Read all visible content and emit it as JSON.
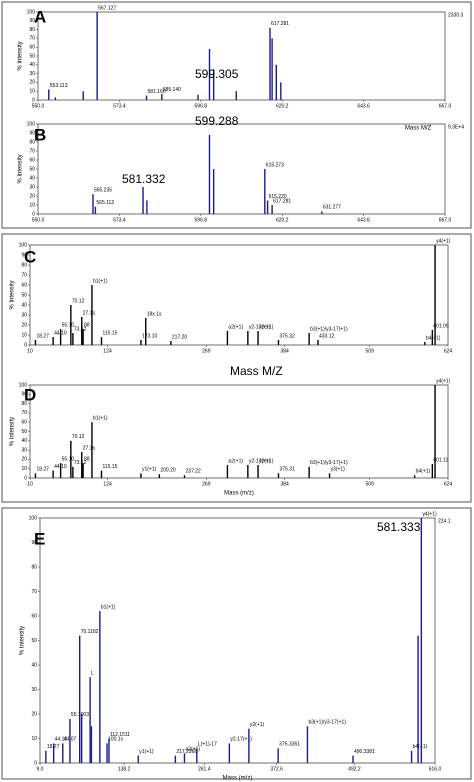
{
  "chart_data": [
    {
      "type": "bar",
      "panel": "A",
      "ylabel": "% Intensity",
      "scale_label": "2330.3",
      "x": [
        553.1,
        555.0,
        563.0,
        567.0,
        581.2,
        585.6,
        596.0,
        599.3,
        600.5,
        607.0,
        616.7,
        617.3,
        618.5,
        619.8
      ],
      "values": [
        12,
        3,
        10,
        100,
        5,
        7,
        6,
        58,
        35,
        10,
        82,
        70,
        40,
        20
      ],
      "peak_labels": [
        "553.113",
        null,
        null,
        "567.127",
        "581.160",
        "585.140",
        null,
        null,
        null,
        null,
        "617.281",
        null,
        null,
        null
      ],
      "annotations": [
        "599.305"
      ],
      "xlim": [
        550,
        667
      ],
      "ylim": [
        0,
        100
      ],
      "xticks": [
        {
          "value": 550,
          "label": "550.0"
        },
        {
          "value": 573.4,
          "label": "573.4"
        },
        {
          "value": 596.8,
          "label": "596.8"
        },
        {
          "value": 620.2,
          "label": "620.2"
        },
        {
          "value": 643.6,
          "label": "643.6"
        },
        {
          "value": 667,
          "label": "667.0"
        }
      ],
      "yticks": [
        0,
        10,
        20,
        30,
        40,
        50,
        60,
        70,
        80,
        90,
        100
      ],
      "color": "#1a1a8c"
    },
    {
      "type": "bar",
      "panel": "B",
      "ylabel": "% Intensity",
      "scale_label": "9.3E+4",
      "x": [
        565.8,
        566.5,
        580.2,
        581.3,
        599.3,
        600.5,
        615.2,
        616.0,
        617.3,
        631.6
      ],
      "values": [
        22,
        8,
        30,
        15,
        88,
        50,
        50,
        15,
        10,
        3
      ],
      "peak_labels": [
        "565.235",
        "565.112",
        null,
        null,
        null,
        null,
        "615.273",
        "615.220",
        "617.281",
        "631.277"
      ],
      "annotations": [
        "599.288",
        "581.332",
        "Mass M/Z"
      ],
      "xlim": [
        550,
        667
      ],
      "ylim": [
        0,
        100
      ],
      "xticks": [
        {
          "value": 550,
          "label": "550.0"
        },
        {
          "value": 573.4,
          "label": "573.4"
        },
        {
          "value": 596.8,
          "label": "596.8"
        },
        {
          "value": 620.2,
          "label": "620.2"
        },
        {
          "value": 643.6,
          "label": "643.6"
        },
        {
          "value": 667,
          "label": "667.0"
        }
      ],
      "yticks": [
        0,
        10,
        20,
        30,
        40,
        50,
        60,
        70,
        80,
        90,
        100
      ],
      "color": "#1a1a8c"
    },
    {
      "type": "bar",
      "panel": "C",
      "ylabel": "% Intensity",
      "x": [
        18,
        44,
        55,
        70,
        73,
        86,
        88,
        101,
        115,
        173,
        180,
        217,
        300,
        330,
        345,
        375,
        420,
        433,
        590,
        601,
        605
      ],
      "values": [
        5,
        8,
        16,
        40,
        12,
        28,
        16,
        60,
        8,
        5,
        27,
        4,
        14,
        14,
        14,
        5,
        12,
        5,
        3,
        15,
        100
      ],
      "peak_labels": [
        "18.27",
        "44.10",
        "55.10",
        "70.12",
        "73.12",
        "27.1s",
        "88",
        "b1(+1)",
        "115.15",
        "173.10",
        "18x.1s",
        "217.20",
        "a2(+1)",
        "y2-17(+1)",
        "y2(+1)",
        "375.32",
        "b3(+1)/y3-17(+1)",
        "433.12",
        "b4(+1)",
        "601.09",
        "y4(+1)"
      ],
      "annotations": [
        "Mass M/Z"
      ],
      "xlim": [
        10,
        624
      ],
      "ylim": [
        0,
        100
      ],
      "xticks": [
        10,
        124,
        269,
        384,
        509,
        624
      ],
      "yticks": [
        0,
        10,
        20,
        30,
        40,
        50,
        60,
        70,
        80,
        90,
        100
      ],
      "color": "#000000"
    },
    {
      "type": "bar",
      "panel": "D",
      "ylabel": "% Intensity",
      "xlabel": "Mass (m/z)",
      "x": [
        18,
        44,
        55,
        70,
        73,
        86,
        88,
        101,
        115,
        173,
        200,
        237,
        300,
        330,
        345,
        375,
        420,
        450,
        575,
        601,
        605
      ],
      "values": [
        5,
        8,
        16,
        40,
        12,
        28,
        16,
        60,
        8,
        5,
        4,
        3,
        14,
        14,
        14,
        5,
        12,
        5,
        3,
        15,
        100
      ],
      "peak_labels": [
        "18.27",
        "44.10",
        "55.10",
        "70.12",
        "73.12",
        "27.1s",
        "88",
        "b1(+1)",
        "115.15",
        "y1(+1)",
        "200.20",
        "237.22",
        "a2(+1)",
        "y2-17(+1)",
        "y2(+1)",
        "375.31",
        "b3(+1)/y3-17(+1)",
        "y3(+1)",
        "b4(+1)",
        "601.11",
        "y4(+1)"
      ],
      "annotations": [],
      "xlim": [
        10,
        624
      ],
      "ylim": [
        0,
        100
      ],
      "xticks": [
        10,
        124,
        269,
        384,
        509,
        624
      ],
      "yticks": [
        0,
        10,
        20,
        30,
        40,
        50,
        60,
        70,
        80,
        90,
        100
      ],
      "color": "#000000"
    },
    {
      "type": "bar",
      "panel": "E",
      "ylabel": "% Intensity",
      "xlabel": "Mass (m/z)",
      "scale_label": "224.1",
      "x": [
        18,
        30,
        44,
        55,
        70,
        73,
        86,
        88,
        101,
        112,
        115,
        160,
        217,
        231,
        250,
        300,
        330,
        375,
        420,
        490,
        580,
        590,
        595
      ],
      "values": [
        5,
        8,
        8,
        18,
        52,
        20,
        35,
        15,
        62,
        8,
        10,
        3,
        3,
        4,
        6,
        8,
        14,
        6,
        15,
        3,
        5,
        52,
        100
      ],
      "peak_labels": [
        "18.27",
        "44.10",
        "44.07",
        "55.1003",
        "70.1182",
        null,
        "L",
        null,
        "b1(+1)",
        "100.1s",
        "112.1511",
        "y1(+1)",
        "217.2266",
        "a2(+1)",
        "L(+1)-17",
        "y2-17(+1)",
        "y2(+1)",
        "375.3361",
        "b3(+1)/y3-17(+1)",
        "490.3381",
        "b4(+1)",
        null,
        "y4(+1)"
      ],
      "annotations": [
        "581.333"
      ],
      "xlim": [
        9,
        616
      ],
      "ylim": [
        0,
        100
      ],
      "xticks": [
        {
          "value": 9,
          "label": "9.0"
        },
        {
          "value": 138.2,
          "label": "138.2"
        },
        {
          "value": 261.4,
          "label": "261.4"
        },
        {
          "value": 372.6,
          "label": "372.6"
        },
        {
          "value": 492.2,
          "label": "492.2"
        },
        {
          "value": 616,
          "label": "616.0"
        }
      ],
      "yticks": [
        0,
        10,
        20,
        30,
        40,
        50,
        60,
        70,
        80,
        90,
        100
      ],
      "color": "#1a1a8c"
    }
  ]
}
